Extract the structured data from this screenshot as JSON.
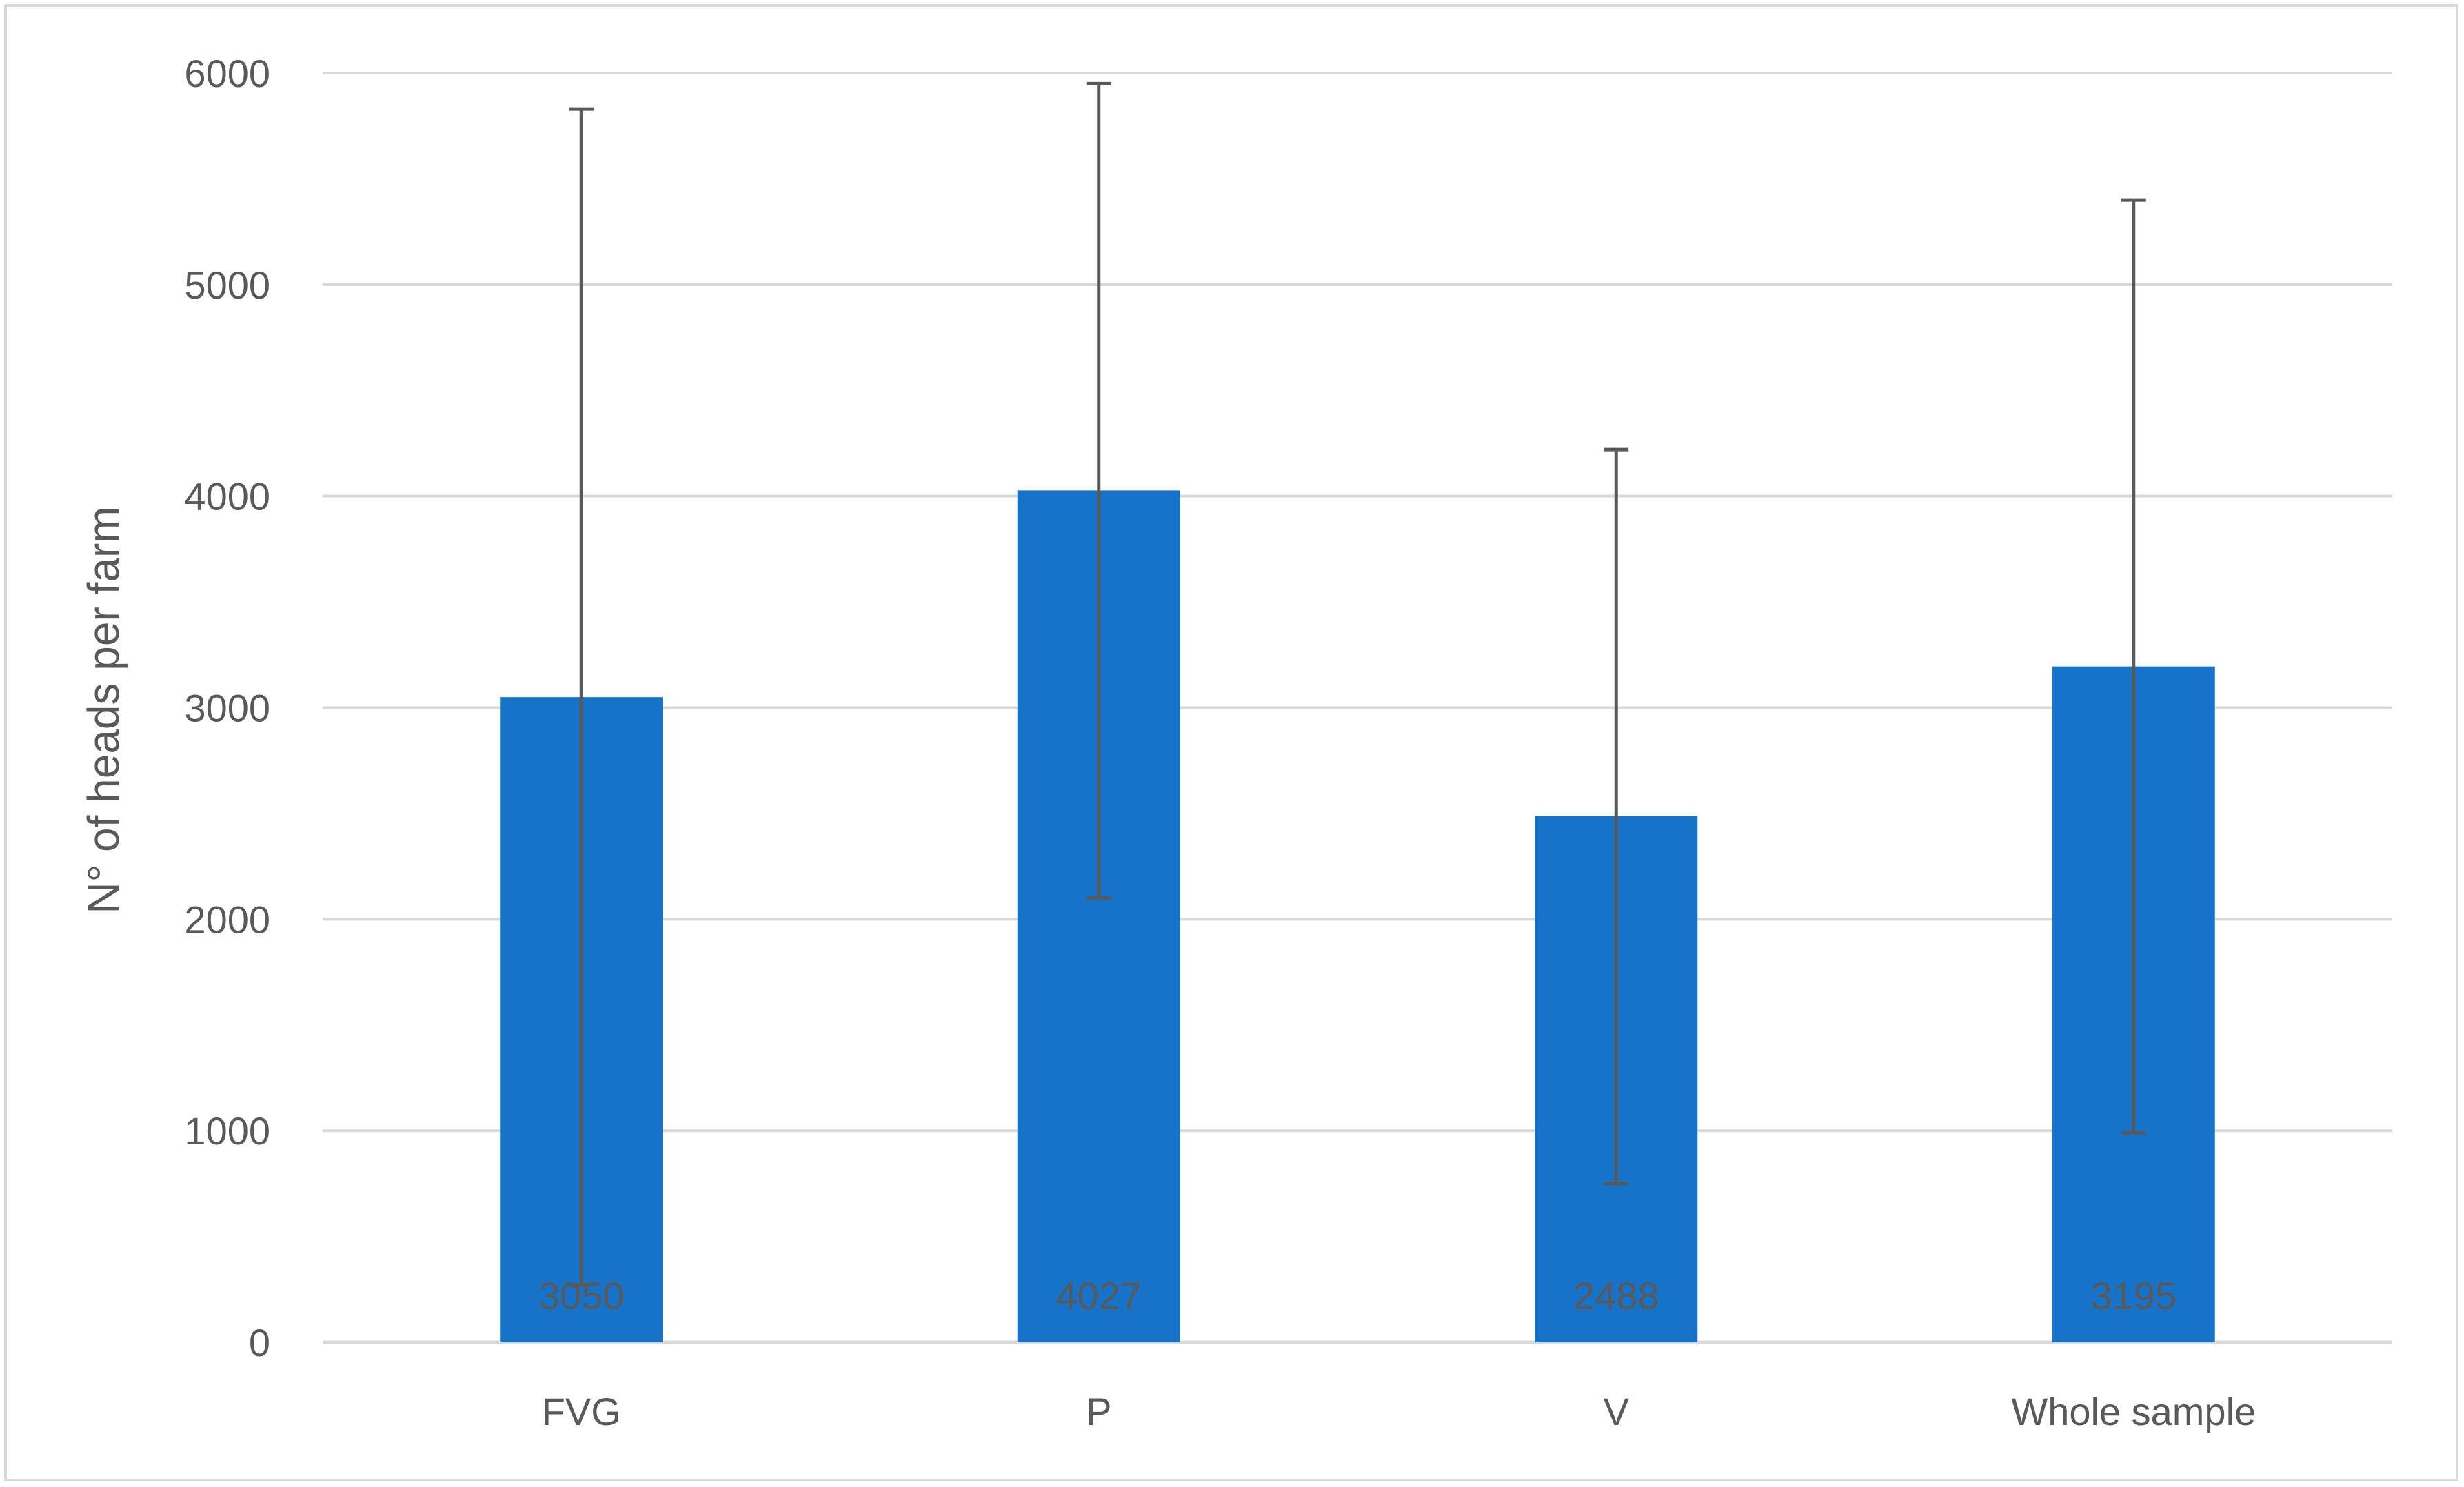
{
  "chart_data": {
    "type": "bar",
    "title": "",
    "xlabel": "",
    "ylabel": "N° of heads per farm",
    "categories": [
      "FVG",
      "P",
      "V",
      "Whole sample"
    ],
    "values": [
      3050,
      4027,
      2488,
      3195
    ],
    "data_labels": [
      "3050",
      "4027",
      "2488",
      "3195"
    ],
    "error_upper": [
      5830,
      5950,
      4220,
      5400
    ],
    "error_lower": [
      270,
      2100,
      750,
      990
    ],
    "ylim": [
      0,
      6000
    ],
    "yticks": [
      0,
      1000,
      2000,
      3000,
      4000,
      5000,
      6000
    ],
    "ytick_labels": [
      "0",
      "1000",
      "2000",
      "3000",
      "4000",
      "5000",
      "6000"
    ],
    "grid": true,
    "legend": "none",
    "colors": {
      "bar": "#1773c8",
      "gridline": "#d9d9d9",
      "axis": "#d9d9d9",
      "error_bar": "#595959",
      "text": "#595959",
      "border": "#d9d9d9"
    }
  }
}
